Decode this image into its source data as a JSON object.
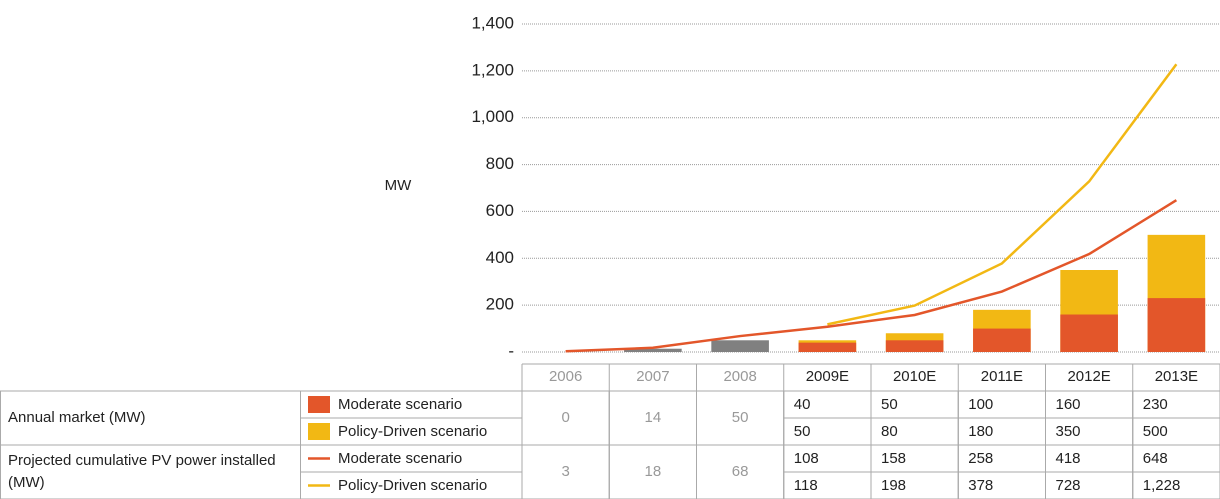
{
  "chart_data": {
    "type": "bar",
    "y_label": "MW",
    "categories": [
      "2006",
      "2007",
      "2008",
      "2009E",
      "2010E",
      "2011E",
      "2012E",
      "2013E"
    ],
    "historical_count": 3,
    "historical_color": "#808080",
    "ylim": [
      0,
      1400
    ],
    "yticks": [
      {
        "value": 0,
        "label": "-"
      },
      200,
      400,
      600,
      800,
      {
        "value": 1000,
        "label": "1,000"
      },
      {
        "value": 1200,
        "label": "1,200"
      },
      {
        "value": 1400,
        "label": "1,400"
      }
    ],
    "grid": true,
    "groups": [
      {
        "label": "Annual market (MW)",
        "series": [
          {
            "name": "Moderate scenario",
            "type": "bar",
            "color": "#e3562a",
            "values": [
              0,
              14,
              50,
              40,
              50,
              100,
              160,
              230
            ]
          },
          {
            "name": "Policy-Driven scenario",
            "type": "bar",
            "color": "#f2b814",
            "values": [
              null,
              null,
              null,
              50,
              80,
              180,
              350,
              500
            ]
          }
        ]
      },
      {
        "label": "Projected cumulative PV power installed (MW)",
        "series": [
          {
            "name": "Moderate scenario",
            "type": "line",
            "color": "#e3562a",
            "values": [
              3,
              18,
              68,
              108,
              158,
              258,
              418,
              648
            ]
          },
          {
            "name": "Policy-Driven scenario",
            "type": "line",
            "color": "#f2b814",
            "values": [
              null,
              null,
              null,
              118,
              198,
              378,
              728,
              1228
            ],
            "value_labels": [
              null,
              null,
              null,
              "118",
              "198",
              "378",
              "728",
              "1,228"
            ]
          }
        ]
      }
    ]
  }
}
